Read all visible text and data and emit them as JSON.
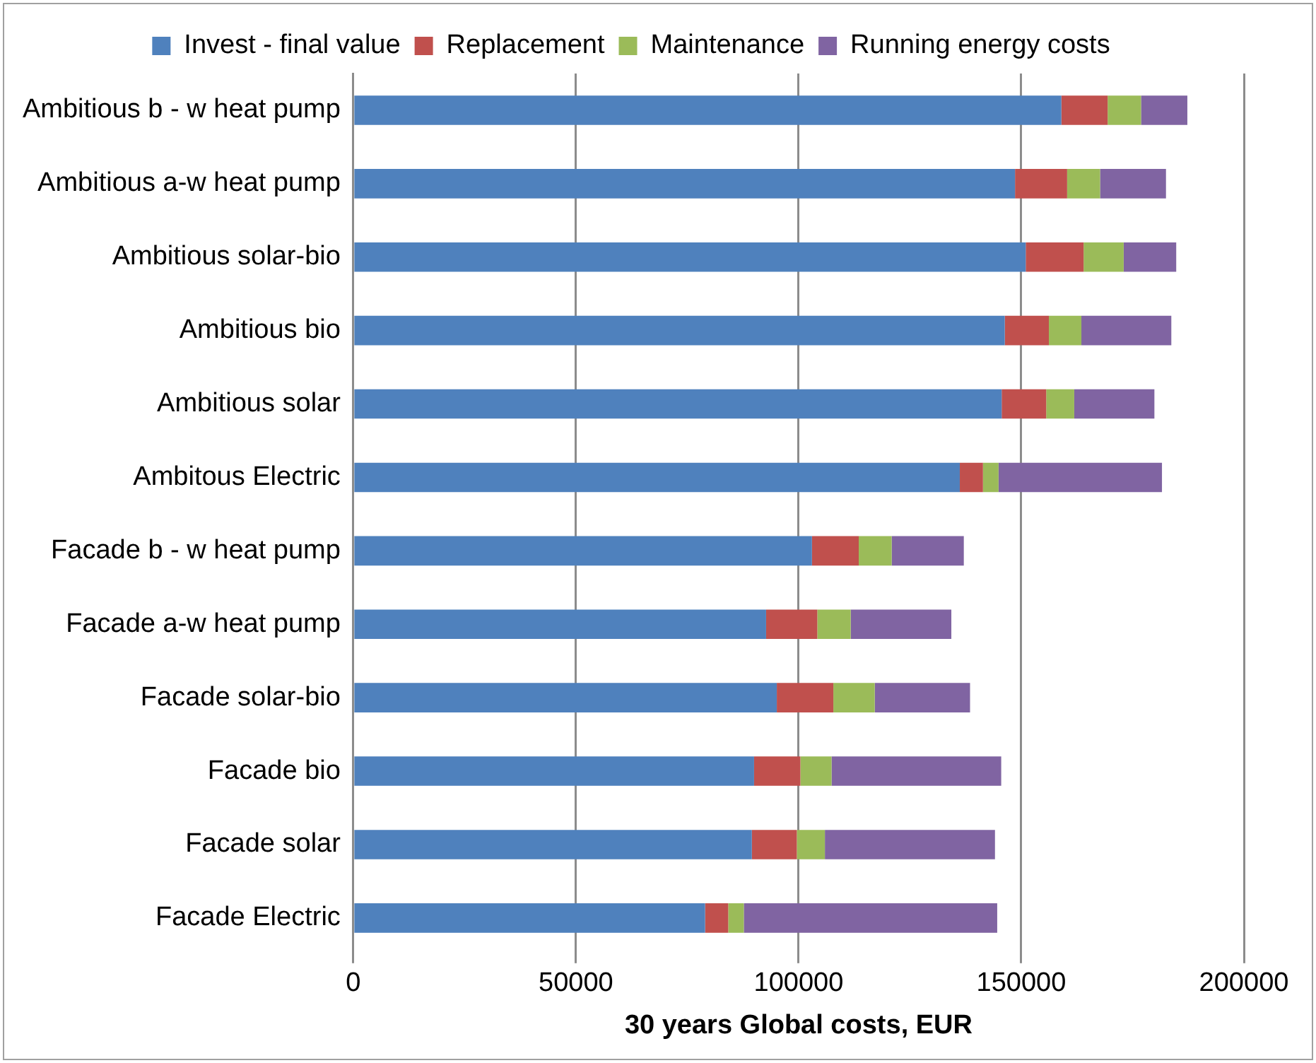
{
  "chart_data": {
    "type": "bar",
    "orientation": "horizontal",
    "stacked": true,
    "xlabel": "30 years Global costs, EUR",
    "categories": [
      "Ambitious b - w heat pump",
      "Ambitious a-w heat pump",
      "Ambitious solar-bio",
      "Ambitious bio",
      "Ambitious solar",
      "Ambitous Electric",
      "Facade b - w heat pump",
      "Facade a-w heat pump",
      "Facade solar-bio",
      "Facade bio",
      "Facade solar",
      "Facade Electric"
    ],
    "series": [
      {
        "name": "Invest - final value",
        "color": "#4f81bd",
        "values": [
          159000,
          148600,
          151000,
          146300,
          145600,
          136200,
          103000,
          92700,
          95100,
          90000,
          89500,
          79000
        ]
      },
      {
        "name": "Replacement",
        "color": "#c0504d",
        "values": [
          10400,
          11700,
          13000,
          9900,
          10000,
          5200,
          10500,
          11500,
          12700,
          10400,
          10100,
          5200
        ]
      },
      {
        "name": "Maintenance",
        "color": "#9bbb59",
        "values": [
          7500,
          7400,
          9000,
          7300,
          6300,
          3500,
          7400,
          7500,
          9300,
          7000,
          6300,
          3500
        ]
      },
      {
        "name": "Running energy costs",
        "color": "#8064a2",
        "values": [
          10400,
          14800,
          11800,
          20200,
          18000,
          36700,
          16200,
          22600,
          21400,
          38100,
          38200,
          56900
        ]
      }
    ],
    "xlim": [
      0,
      200000
    ],
    "xticks": [
      0,
      50000,
      100000,
      150000,
      200000
    ],
    "grid": "x",
    "legend": "top"
  }
}
